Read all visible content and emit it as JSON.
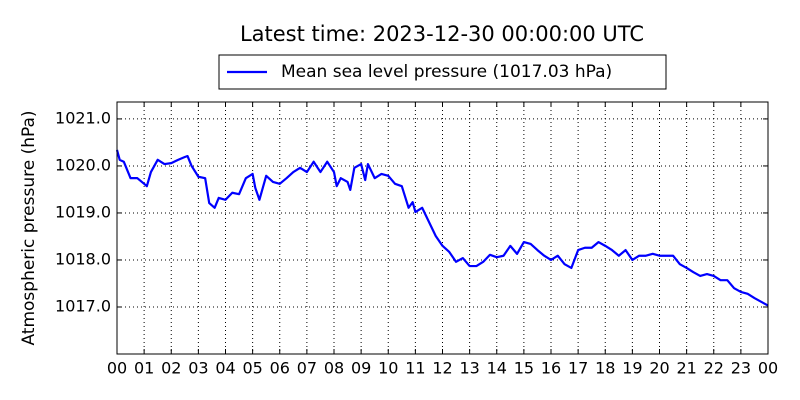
{
  "chart_data": {
    "type": "line",
    "title": "Latest time: 2023-12-30 00:00:00 UTC",
    "y_label": "Atmospheric pressure (hPa)",
    "legend": "upper center",
    "grid": true,
    "xlim": [
      0,
      24
    ],
    "ylim": [
      1016.0,
      1021.36
    ],
    "xticks": [
      {
        "value": 0,
        "label": "00"
      },
      {
        "value": 1,
        "label": "01"
      },
      {
        "value": 2,
        "label": "02"
      },
      {
        "value": 3,
        "label": "03"
      },
      {
        "value": 4,
        "label": "04"
      },
      {
        "value": 5,
        "label": "05"
      },
      {
        "value": 6,
        "label": "06"
      },
      {
        "value": 7,
        "label": "07"
      },
      {
        "value": 8,
        "label": "08"
      },
      {
        "value": 9,
        "label": "09"
      },
      {
        "value": 10,
        "label": "10"
      },
      {
        "value": 11,
        "label": "11"
      },
      {
        "value": 12,
        "label": "12"
      },
      {
        "value": 13,
        "label": "13"
      },
      {
        "value": 14,
        "label": "14"
      },
      {
        "value": 15,
        "label": "15"
      },
      {
        "value": 16,
        "label": "16"
      },
      {
        "value": 17,
        "label": "17"
      },
      {
        "value": 18,
        "label": "18"
      },
      {
        "value": 19,
        "label": "19"
      },
      {
        "value": 20,
        "label": "20"
      },
      {
        "value": 21,
        "label": "21"
      },
      {
        "value": 22,
        "label": "22"
      },
      {
        "value": 23,
        "label": "23"
      },
      {
        "value": 24,
        "label": "00"
      }
    ],
    "yticks": [
      {
        "value": 1017,
        "label": "1017.0"
      },
      {
        "value": 1018,
        "label": "1018.0"
      },
      {
        "value": 1019,
        "label": "1019.0"
      },
      {
        "value": 1020,
        "label": "1020.0"
      },
      {
        "value": 1021,
        "label": "1021.0"
      }
    ],
    "x": [
      0,
      0.1,
      0.25,
      0.5,
      0.75,
      1,
      1.1,
      1.25,
      1.5,
      1.75,
      2,
      2.25,
      2.5,
      2.6,
      2.75,
      3,
      3.25,
      3.4,
      3.6,
      3.75,
      4,
      4.25,
      4.5,
      4.75,
      5,
      5.1,
      5.25,
      5.5,
      5.75,
      6,
      6.25,
      6.5,
      6.75,
      7,
      7.25,
      7.5,
      7.75,
      8,
      8.1,
      8.25,
      8.5,
      8.6,
      8.75,
      9,
      9.15,
      9.25,
      9.5,
      9.75,
      10,
      10.25,
      10.5,
      10.75,
      10.9,
      11,
      11.25,
      11.5,
      11.75,
      12,
      12.25,
      12.5,
      12.75,
      13,
      13.25,
      13.5,
      13.75,
      14,
      14.25,
      14.5,
      14.75,
      15,
      15.25,
      15.5,
      15.75,
      16,
      16.25,
      16.5,
      16.75,
      17,
      17.25,
      17.5,
      17.75,
      18,
      18.25,
      18.5,
      18.75,
      19,
      19.25,
      19.5,
      19.75,
      20,
      20.25,
      20.5,
      20.75,
      21,
      21.25,
      21.5,
      21.75,
      22,
      22.25,
      22.5,
      22.75,
      23,
      23.25,
      23.5,
      23.75,
      24
    ],
    "series": [
      {
        "name": "Mean sea level pressure (1017.03 hPa)",
        "color": "#0000ff",
        "values": [
          1020.34,
          1020.13,
          1020.09,
          1019.74,
          1019.74,
          1019.62,
          1019.57,
          1019.87,
          1020.13,
          1020.04,
          1020.06,
          1020.13,
          1020.19,
          1020.21,
          1020.0,
          1019.77,
          1019.74,
          1019.21,
          1019.11,
          1019.32,
          1019.28,
          1019.43,
          1019.4,
          1019.74,
          1019.83,
          1019.53,
          1019.28,
          1019.79,
          1019.66,
          1019.62,
          1019.74,
          1019.87,
          1019.96,
          1019.87,
          1020.09,
          1019.87,
          1020.09,
          1019.87,
          1019.57,
          1019.74,
          1019.66,
          1019.49,
          1019.96,
          1020.04,
          1019.7,
          1020.04,
          1019.74,
          1019.83,
          1019.79,
          1019.62,
          1019.57,
          1019.11,
          1019.23,
          1019.02,
          1019.11,
          1018.81,
          1018.51,
          1018.3,
          1018.17,
          1017.96,
          1018.04,
          1017.87,
          1017.87,
          1017.96,
          1018.11,
          1018.06,
          1018.09,
          1018.3,
          1018.13,
          1018.38,
          1018.34,
          1018.21,
          1018.09,
          1018.0,
          1018.09,
          1017.91,
          1017.83,
          1018.21,
          1018.26,
          1018.26,
          1018.38,
          1018.3,
          1018.21,
          1018.09,
          1018.21,
          1018.0,
          1018.09,
          1018.09,
          1018.13,
          1018.09,
          1018.09,
          1018.09,
          1017.91,
          1017.83,
          1017.74,
          1017.66,
          1017.7,
          1017.66,
          1017.57,
          1017.57,
          1017.4,
          1017.32,
          1017.28,
          1017.19,
          1017.11,
          1017.03
        ]
      }
    ]
  }
}
